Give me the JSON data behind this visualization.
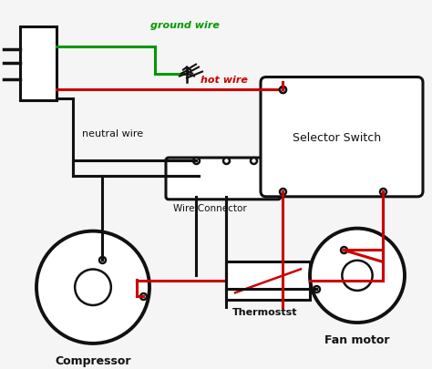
{
  "bg_color": "#f5f5f5",
  "green": "#009900",
  "red": "#cc0000",
  "black": "#111111",
  "white": "#ffffff",
  "labels": {
    "ground_wire": "ground wire",
    "hot_wire": "hot wire",
    "neutral_wire": "neutral wire",
    "wire_connector": "Wire Connector",
    "selector_switch": "Selector Switch",
    "thermostat": "Thermostst",
    "compressor": "Compressor",
    "fan_motor": "Fan motor"
  }
}
